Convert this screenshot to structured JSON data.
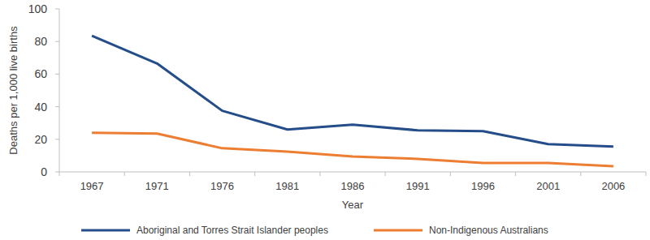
{
  "chart_data": {
    "type": "line",
    "x_label": "Year",
    "y_label": "Deaths per 1,000 live births",
    "categories": [
      "1967",
      "1971",
      "1976",
      "1981",
      "1986",
      "1991",
      "1996",
      "2001",
      "2006"
    ],
    "series": [
      {
        "name": "Aboriginal and Torres Strait Islander peoples",
        "color": "#244d8a",
        "values": [
          83.5,
          66.5,
          37.5,
          26,
          29,
          25.5,
          25,
          17,
          15.5
        ]
      },
      {
        "name": "Non-Indigenous Australians",
        "color": "#ed7d31",
        "values": [
          24,
          23.5,
          14.5,
          12.5,
          9.5,
          8,
          5.5,
          5.5,
          3.5
        ]
      }
    ],
    "ylim": [
      0,
      100
    ],
    "yticks": [
      0,
      20,
      40,
      60,
      80,
      100
    ],
    "grid": false,
    "legend": "bottom"
  }
}
